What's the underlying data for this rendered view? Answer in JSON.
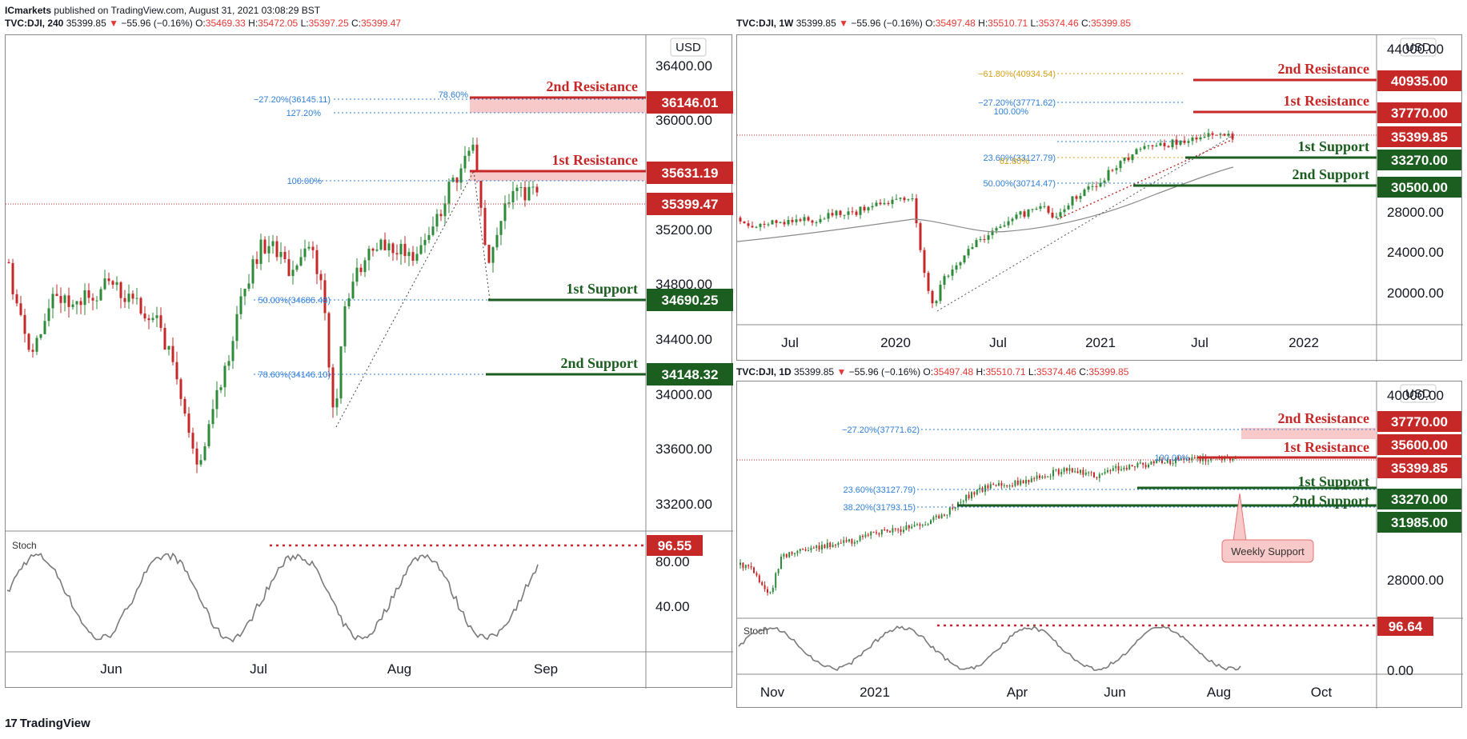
{
  "publisher": {
    "name": "ICmarkets",
    "text": "published on TradingView.com, August 31, 2021 03:08:29 BST"
  },
  "footer": {
    "brand": "TradingView",
    "logo": "tradingview-logo-icon"
  },
  "colors": {
    "resistance": "#c62828",
    "support": "#1b5e20",
    "resistanceZone": "#f8c9c9",
    "fib": "#2f7fd8",
    "fibGold": "#d4a017",
    "up": "#26a69a",
    "down": "#c62828",
    "stoch": "#7a7a7a",
    "upCandle": "#2e8b3a"
  },
  "charts": [
    {
      "id": "h4",
      "header": {
        "symbol": "TVC:DJI, 240",
        "price": "35399.85",
        "change": "−55.96 (−0.16%)",
        "o": "35469.33",
        "h": "35472.05",
        "l": "35397.25",
        "c": "35399.47"
      },
      "currency": "USD",
      "y_ticks": [
        "36400.00",
        "36000.00",
        "35200.00",
        "34800.00",
        "34400.00",
        "34000.00",
        "33600.00",
        "33200.00"
      ],
      "x_ticks": [
        "Jun",
        "Jul",
        "Aug",
        "Sep"
      ],
      "levels": [
        {
          "label": "2nd Resistance",
          "value": "36146.01",
          "kind": "resistance"
        },
        {
          "label": "1st Resistance",
          "value": "35631.19",
          "kind": "resistance"
        },
        {
          "label": "",
          "value": "35399.47",
          "kind": "current"
        },
        {
          "label": "1st Support",
          "value": "34690.25",
          "kind": "support"
        },
        {
          "label": "2nd Support",
          "value": "34148.32",
          "kind": "support"
        }
      ],
      "fib_labels": [
        "−27.20%(36145.11)",
        "78.60%",
        "127.20%",
        "100.00%",
        "50.00%(34686.48)",
        "78.60%(34146.10)"
      ],
      "stoch": {
        "label": "Stoch",
        "value": "96.55",
        "ticks": [
          "80.00",
          "40.00"
        ]
      }
    },
    {
      "id": "w1",
      "header": {
        "symbol": "TVC:DJI, 1W",
        "price": "35399.85",
        "change": "−55.96 (−0.16%)",
        "o": "35497.48",
        "h": "35510.71",
        "l": "35374.46",
        "c": "35399.85"
      },
      "currency": "USD",
      "y_ticks": [
        "44000.00",
        "28000.00",
        "24000.00",
        "20000.00"
      ],
      "x_ticks": [
        "Jul",
        "2020",
        "Jul",
        "2021",
        "Jul",
        "2022"
      ],
      "levels": [
        {
          "label": "2nd Resistance",
          "value": "40935.00",
          "kind": "resistance"
        },
        {
          "label": "1st Resistance",
          "value": "37770.00",
          "kind": "resistance"
        },
        {
          "label": "",
          "value": "35399.85",
          "kind": "current"
        },
        {
          "label": "1st Support",
          "value": "33270.00",
          "kind": "support"
        },
        {
          "label": "2nd Support",
          "value": "30500.00",
          "kind": "support"
        }
      ],
      "fib_labels": [
        "−61.80%(40934.54)",
        "−27.20%(37771.62)",
        "100.00%",
        "23.60%(33127.79)",
        "61.80%",
        "50.00%(30714.47)"
      ]
    },
    {
      "id": "d1",
      "header": {
        "symbol": "TVC:DJI, 1D",
        "price": "35399.85",
        "change": "−55.96 (−0.16%)",
        "o": "35497.48",
        "h": "35510.71",
        "l": "35374.46",
        "c": "35399.85"
      },
      "currency": "USD",
      "y_ticks": [
        "40000.00",
        "28000.00",
        "0.00"
      ],
      "x_ticks": [
        "Nov",
        "2021",
        "Apr",
        "Jun",
        "Aug",
        "Oct"
      ],
      "levels": [
        {
          "label": "2nd Resistance",
          "value": "37770.00",
          "kind": "resistance"
        },
        {
          "label": "1st Resistance",
          "value": "35600.00",
          "kind": "resistance"
        },
        {
          "label": "",
          "value": "35399.85",
          "kind": "current"
        },
        {
          "label": "1st Support",
          "value": "33270.00",
          "kind": "support"
        },
        {
          "label": "2nd Support",
          "value": "31985.00",
          "kind": "support"
        }
      ],
      "fib_labels": [
        "−27.20%(37771.62)",
        "100.00%",
        "23.60%(33127.79)",
        "38.20%(31793.15)"
      ],
      "callout": "Weekly Support",
      "stoch": {
        "label": "Stoch",
        "value": "96.64",
        "ticks": []
      }
    }
  ],
  "chart_data": [
    {
      "type": "line",
      "title": "TVC:DJI, 240",
      "x_range": [
        "May 2021",
        "Sep 2021"
      ],
      "ylim": [
        33000,
        36600
      ],
      "series": [
        {
          "name": "",
          "x": [
            "May-10",
            "May-20",
            "Jun-01",
            "Jun-10",
            "Jun-18",
            "Jun-23",
            "Jul-01",
            "Jul-07",
            "Jul-13",
            "Jul-19",
            "Jul-26",
            "Aug-05",
            "Aug-13",
            "Aug-16",
            "Aug-19",
            "Aug-23",
            "Aug-27",
            "Aug-30"
          ],
          "values": [
            34700,
            34200,
            34600,
            34450,
            33300,
            33900,
            34600,
            34800,
            34900,
            33750,
            35000,
            35000,
            35550,
            35600,
            34690,
            35300,
            35450,
            35399
          ]
        }
      ],
      "stochastic_ticks": [
        80,
        40
      ]
    },
    {
      "type": "line",
      "title": "TVC:DJI, 1W",
      "x_range": [
        "Apr 2019",
        "Mar 2022"
      ],
      "ylim": [
        17000,
        45000
      ],
      "series": [
        {
          "name": "",
          "x": [
            "2019-06",
            "2019-10",
            "2020-01",
            "2020-02",
            "2020-03",
            "2020-06",
            "2020-09",
            "2020-11",
            "2021-02",
            "2021-05",
            "2021-07",
            "2021-08"
          ],
          "values": [
            26500,
            27000,
            29000,
            28800,
            19000,
            26000,
            27800,
            29500,
            31500,
            34500,
            35000,
            35400
          ]
        }
      ]
    },
    {
      "type": "line",
      "title": "TVC:DJI, 1D",
      "x_range": [
        "Oct 2020",
        "Oct 2021"
      ],
      "ylim": [
        25000,
        41000
      ],
      "series": [
        {
          "name": "",
          "x": [
            "2020-10",
            "2020-11",
            "2020-12",
            "2021-01",
            "2021-02",
            "2021-03",
            "2021-04",
            "2021-05",
            "2021-06",
            "2021-07",
            "2021-08"
          ],
          "values": [
            28000,
            27500,
            30000,
            30700,
            31500,
            32800,
            33900,
            34300,
            34000,
            34900,
            35400
          ]
        }
      ]
    }
  ]
}
